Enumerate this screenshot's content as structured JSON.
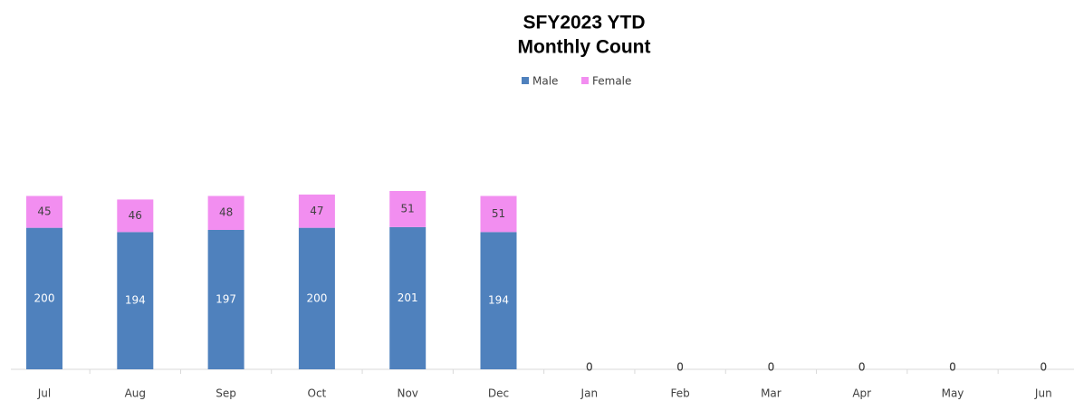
{
  "chart_data": {
    "type": "stacked_bar",
    "title": [
      "SFY2023 YTD",
      "Monthly Count"
    ],
    "categories": [
      "Jul",
      "Aug",
      "Sep",
      "Oct",
      "Nov",
      "Dec",
      "Jan",
      "Feb",
      "Mar",
      "Apr",
      "May",
      "Jun"
    ],
    "series": [
      {
        "name": "Male",
        "color": "#4f81bd",
        "values": [
          200,
          194,
          197,
          200,
          201,
          194,
          0,
          0,
          0,
          0,
          0,
          0
        ]
      },
      {
        "name": "Female",
        "color": "#f28ef0",
        "values": [
          45,
          46,
          48,
          47,
          51,
          51,
          0,
          0,
          0,
          0,
          0,
          0
        ]
      }
    ],
    "legend": "top"
  }
}
